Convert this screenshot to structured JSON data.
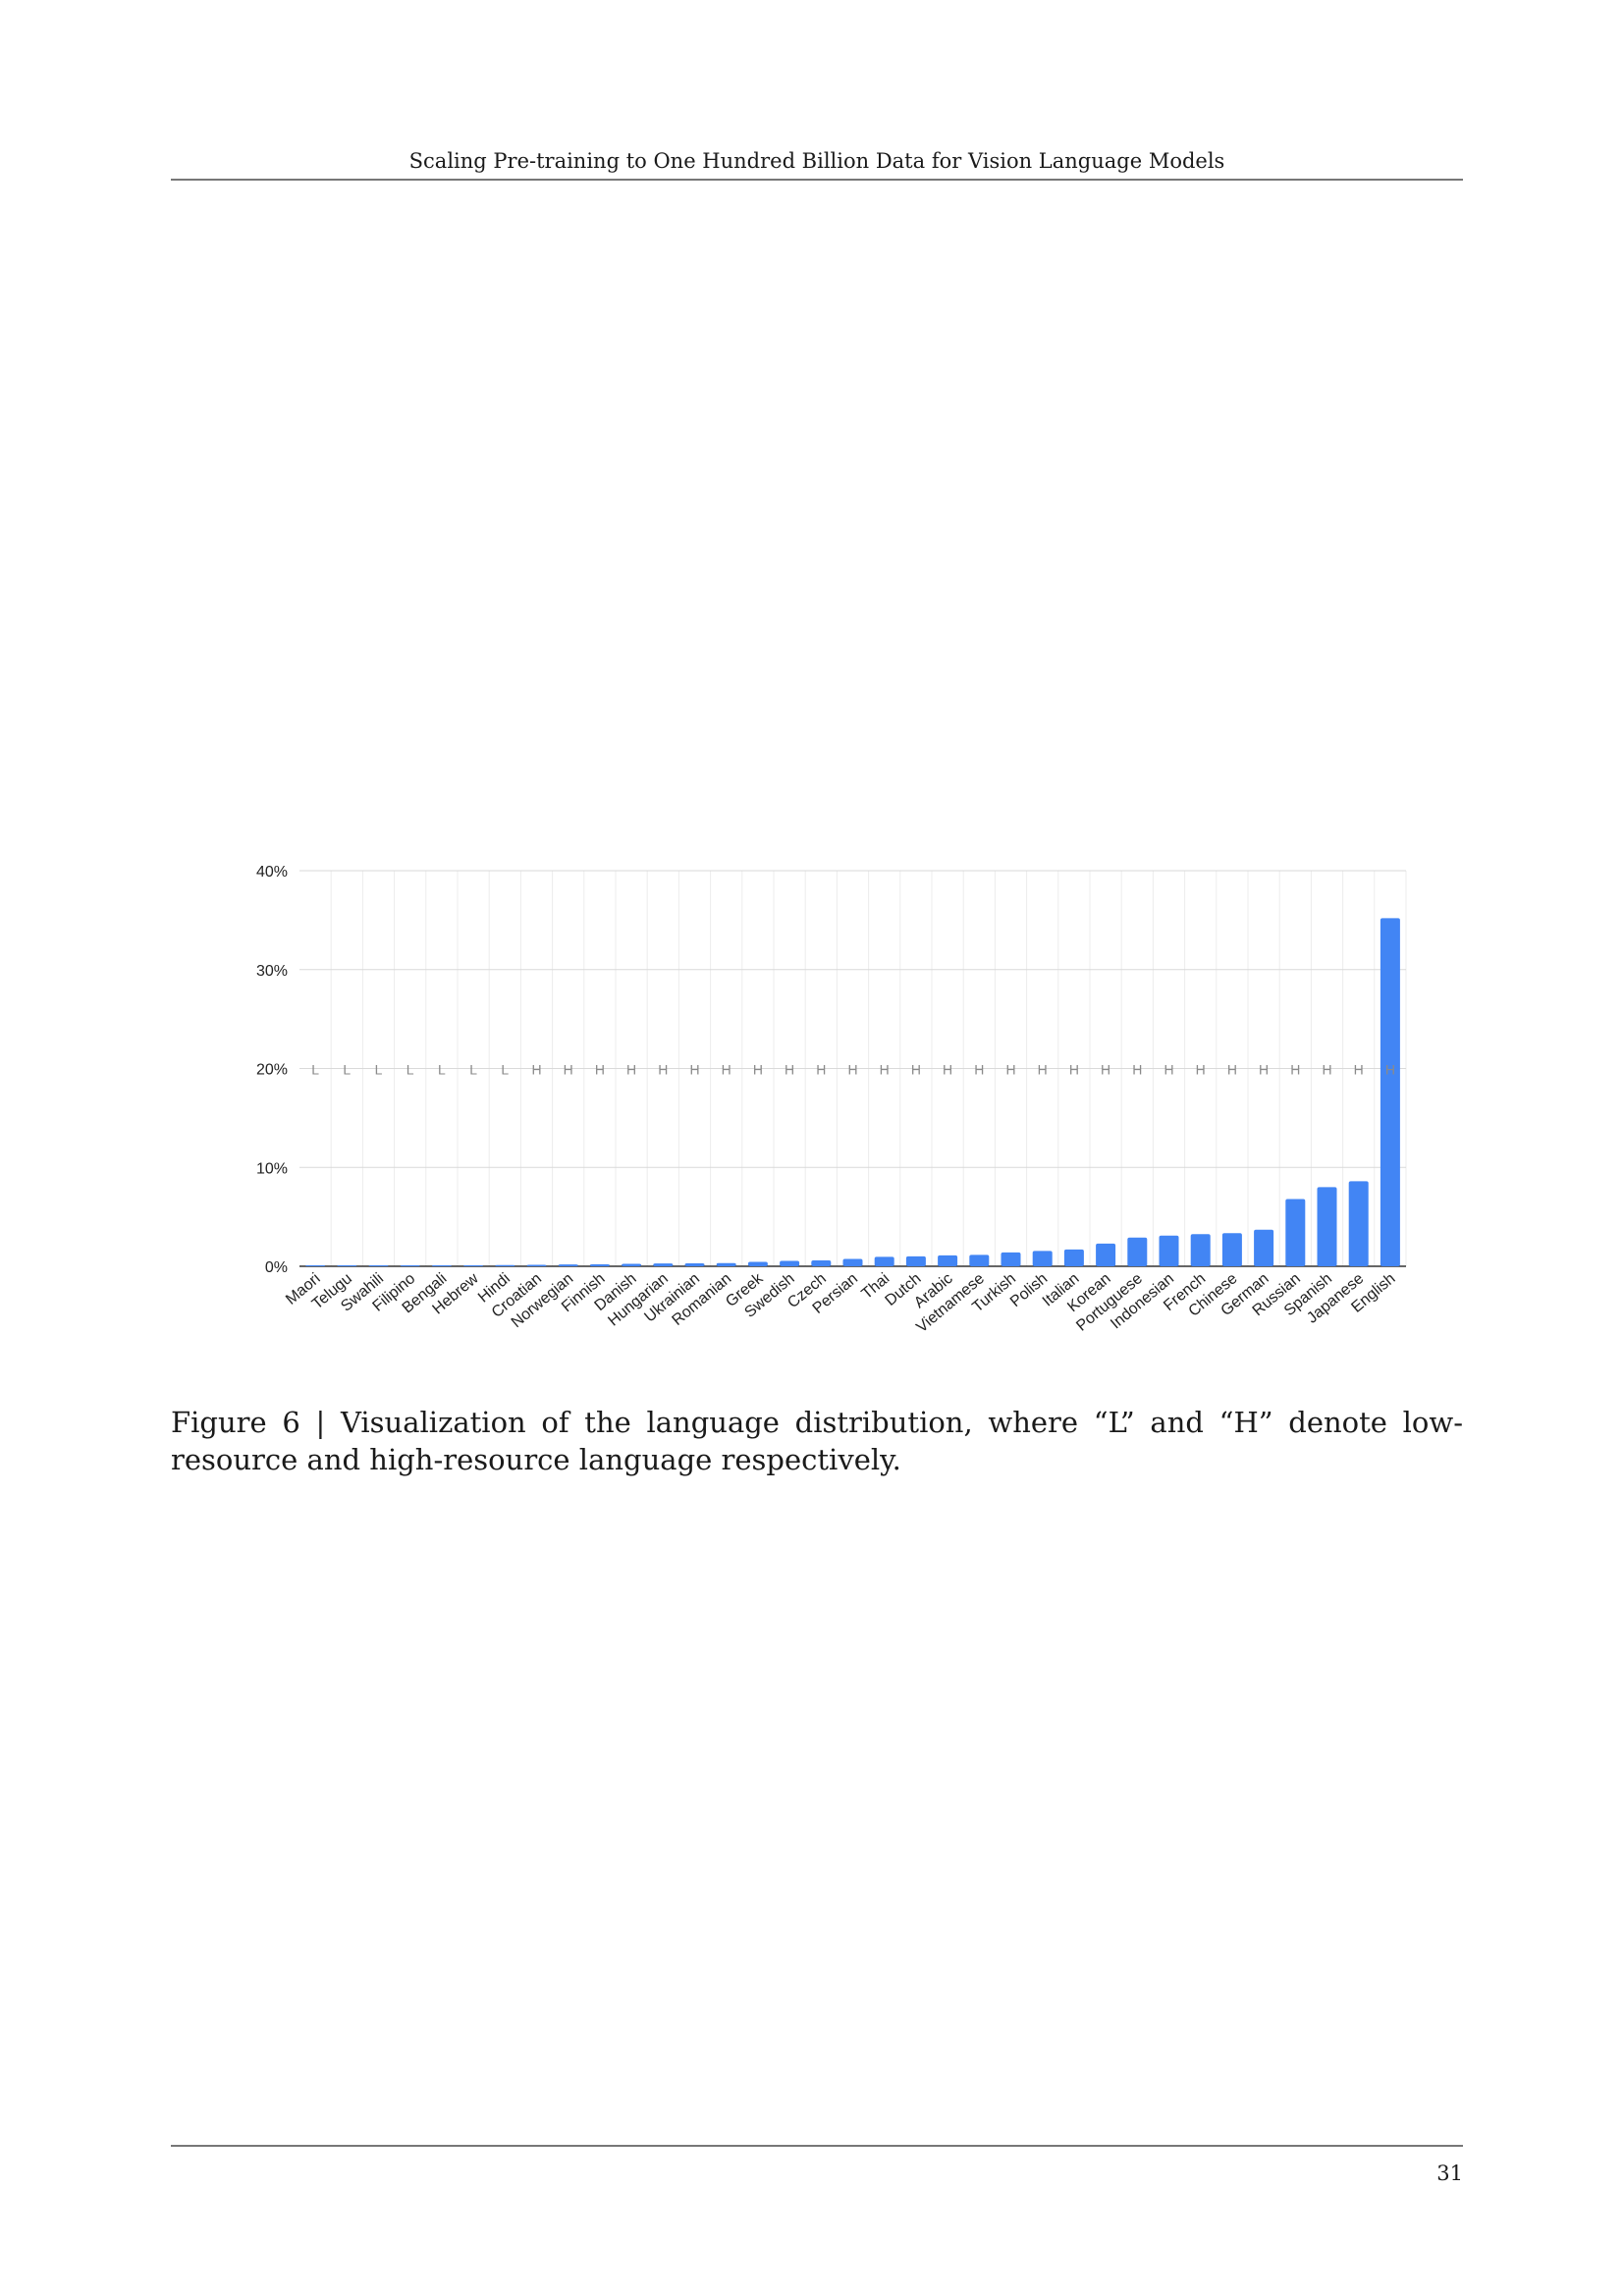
{
  "header": {
    "title": "Scaling Pre-training to One Hundred Billion Data for Vision Language Models"
  },
  "figure": {
    "caption_label": "Figure 6 | ",
    "caption_text": "Visualization of the language distribution, where “L” and “H” denote low-resource and high-resource language respectively."
  },
  "colors": {
    "bar": "#4285f4",
    "grid": "#d9d9d9",
    "axis": "#333333",
    "tag": "#8a8a8a"
  },
  "chart_data": {
    "type": "bar",
    "title": "",
    "xlabel": "",
    "ylabel": "",
    "ylim": [
      0,
      40
    ],
    "yticks": [
      "0%",
      "10%",
      "20%",
      "30%",
      "40%"
    ],
    "grid": true,
    "categories": [
      "Maori",
      "Telugu",
      "Swahili",
      "Filipino",
      "Bengali",
      "Hebrew",
      "Hindi",
      "Croatian",
      "Norwegian",
      "Finnish",
      "Danish",
      "Hungarian",
      "Ukrainian",
      "Romanian",
      "Greek",
      "Swedish",
      "Czech",
      "Persian",
      "Thai",
      "Dutch",
      "Arabic",
      "Vietnamese",
      "Turkish",
      "Polish",
      "Italian",
      "Korean",
      "Portuguese",
      "Indonesian",
      "French",
      "Chinese",
      "German",
      "Russian",
      "Spanish",
      "Japanese",
      "English"
    ],
    "values": [
      0.02,
      0.03,
      0.04,
      0.06,
      0.08,
      0.1,
      0.12,
      0.15,
      0.18,
      0.2,
      0.25,
      0.28,
      0.3,
      0.32,
      0.45,
      0.55,
      0.6,
      0.75,
      0.95,
      1.0,
      1.1,
      1.15,
      1.4,
      1.55,
      1.7,
      2.3,
      2.9,
      3.1,
      3.25,
      3.35,
      3.7,
      6.8,
      8.0,
      8.6,
      35.2
    ],
    "resource_tags": [
      "L",
      "L",
      "L",
      "L",
      "L",
      "L",
      "L",
      "H",
      "H",
      "H",
      "H",
      "H",
      "H",
      "H",
      "H",
      "H",
      "H",
      "H",
      "H",
      "H",
      "H",
      "H",
      "H",
      "H",
      "H",
      "H",
      "H",
      "H",
      "H",
      "H",
      "H",
      "H",
      "H",
      "H",
      "H"
    ],
    "tag_level": 20
  },
  "footer": {
    "page_number": "31"
  }
}
